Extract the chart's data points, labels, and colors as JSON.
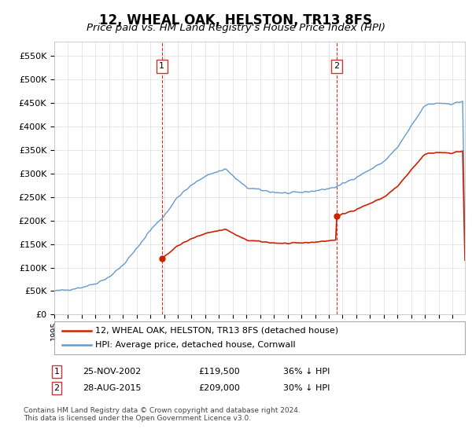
{
  "title": "12, WHEAL OAK, HELSTON, TR13 8FS",
  "subtitle": "Price paid vs. HM Land Registry's House Price Index (HPI)",
  "title_fontsize": 12,
  "subtitle_fontsize": 9.5,
  "hpi_color": "#6699cc",
  "property_color": "#cc2200",
  "vline_color": "#cc3333",
  "purchase1_price": 119500,
  "purchase1_date_str": "25-NOV-2002",
  "purchase1_pct": "36% ↓ HPI",
  "purchase2_price": 209000,
  "purchase2_date_str": "28-AUG-2015",
  "purchase2_pct": "30% ↓ HPI",
  "ylabel_ticks": [
    "£0",
    "£50K",
    "£100K",
    "£150K",
    "£200K",
    "£250K",
    "£300K",
    "£350K",
    "£400K",
    "£450K",
    "£500K",
    "£550K"
  ],
  "ytick_vals": [
    0,
    50000,
    100000,
    150000,
    200000,
    250000,
    300000,
    350000,
    400000,
    450000,
    500000,
    550000
  ],
  "ylim": [
    0,
    580000
  ],
  "legend_prop_label": "12, WHEAL OAK, HELSTON, TR13 8FS (detached house)",
  "legend_hpi_label": "HPI: Average price, detached house, Cornwall",
  "footnote": "Contains HM Land Registry data © Crown copyright and database right 2024.\nThis data is licensed under the Open Government Licence v3.0.",
  "background_color": "#ffffff"
}
